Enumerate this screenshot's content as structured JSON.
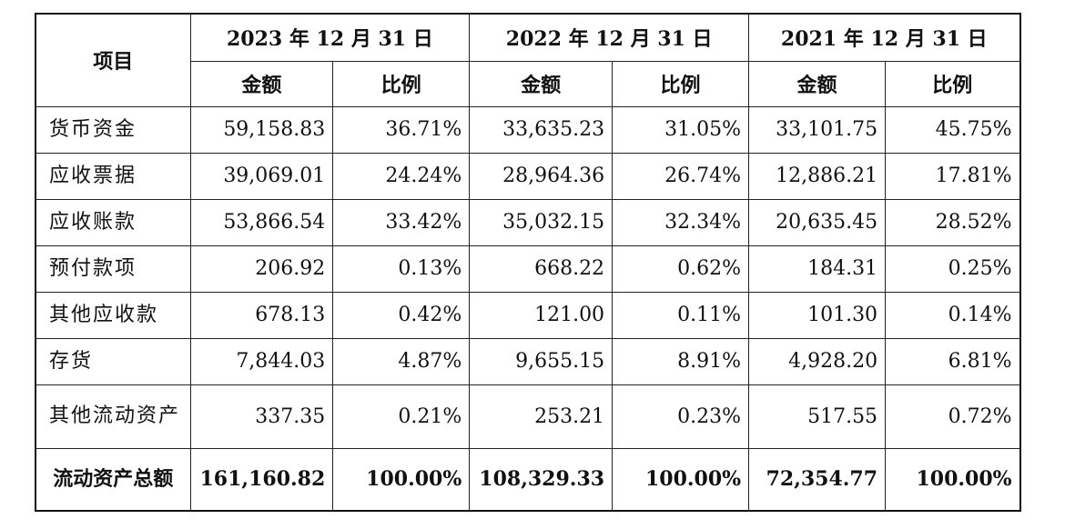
{
  "table": {
    "header": {
      "item_label": "项目",
      "periods": [
        "2023 年 12 月 31 日",
        "2022 年 12 月 31 日",
        "2021 年 12 月 31 日"
      ],
      "amount_label": "金额",
      "ratio_label": "比例"
    },
    "rows": [
      {
        "label": "货币资金",
        "values": [
          "59,158.83",
          "36.71%",
          "33,635.23",
          "31.05%",
          "33,101.75",
          "45.75%"
        ]
      },
      {
        "label": "应收票据",
        "values": [
          "39,069.01",
          "24.24%",
          "28,964.36",
          "26.74%",
          "12,886.21",
          "17.81%"
        ]
      },
      {
        "label": "应收账款",
        "values": [
          "53,866.54",
          "33.42%",
          "35,032.15",
          "32.34%",
          "20,635.45",
          "28.52%"
        ]
      },
      {
        "label": "预付款项",
        "values": [
          "206.92",
          "0.13%",
          "668.22",
          "0.62%",
          "184.31",
          "0.25%"
        ]
      },
      {
        "label": "其他应收款",
        "values": [
          "678.13",
          "0.42%",
          "121.00",
          "0.11%",
          "101.30",
          "0.14%"
        ]
      },
      {
        "label": "存货",
        "values": [
          "7,844.03",
          "4.87%",
          "9,655.15",
          "8.91%",
          "4,928.20",
          "6.81%"
        ]
      },
      {
        "label": "其他流动资产",
        "values": [
          "337.35",
          "0.21%",
          "253.21",
          "0.23%",
          "517.55",
          "0.72%"
        ]
      }
    ],
    "total": {
      "label": "流动资产总额",
      "values": [
        "161,160.82",
        "100.00%",
        "108,329.33",
        "100.00%",
        "72,354.77",
        "100.00%"
      ]
    }
  }
}
